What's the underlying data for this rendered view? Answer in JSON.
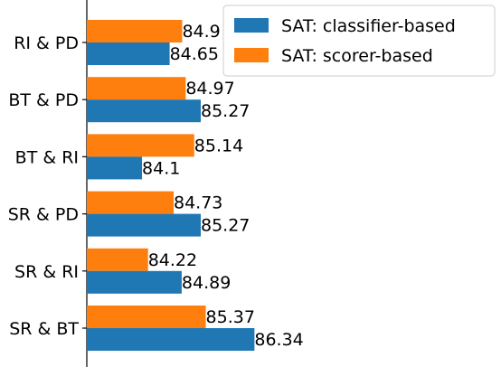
{
  "chart_data": {
    "type": "bar",
    "orientation": "horizontal",
    "categories": [
      "RI & PD",
      "BT & PD",
      "BT & RI",
      "SR & PD",
      "SR & RI",
      "SR & BT"
    ],
    "series": [
      {
        "name": "SAT: classifier-based",
        "color": "#1f77b4",
        "values": [
          84.65,
          85.27,
          84.1,
          85.27,
          84.89,
          86.34
        ],
        "labels": [
          "84.65",
          "85.27",
          "84.1",
          "85.27",
          "84.89",
          "86.34"
        ]
      },
      {
        "name": "SAT: scorer-based",
        "color": "#ff7f0e",
        "values": [
          84.9,
          84.97,
          85.14,
          84.73,
          84.22,
          85.37
        ],
        "labels": [
          "84.9",
          "84.97",
          "85.14",
          "84.73",
          "84.22",
          "85.37"
        ]
      }
    ],
    "xlim": [
      83.0,
      88.5
    ],
    "legend_position": "top-right",
    "grid": false,
    "title": "",
    "xlabel": "",
    "ylabel": ""
  }
}
